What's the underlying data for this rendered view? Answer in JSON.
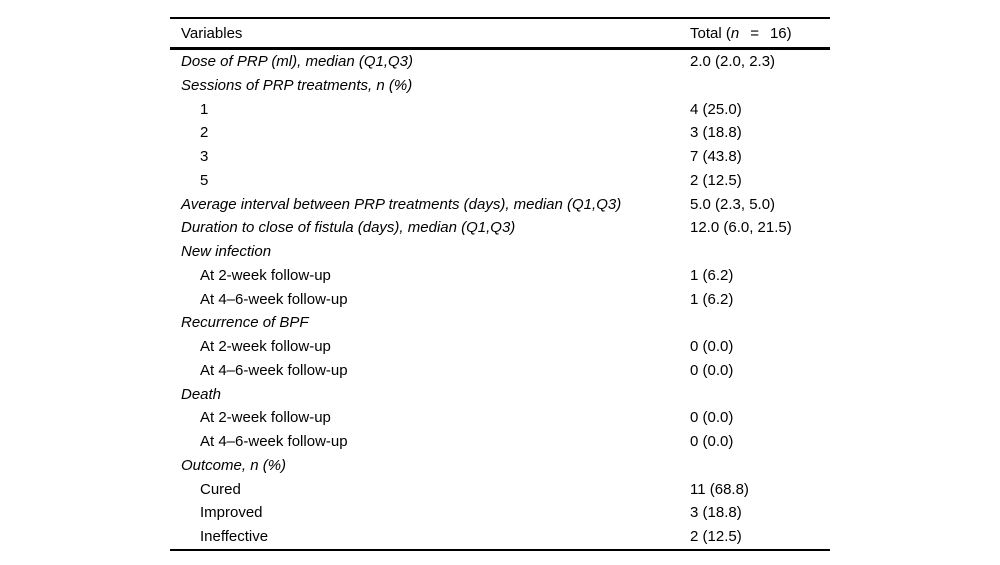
{
  "table": {
    "header": {
      "variables": "Variables",
      "total_prefix": "Total (",
      "total_n": "n",
      "total_eq": "=",
      "total_value": "16)"
    },
    "rows": [
      {
        "label": "Dose of PRP (ml), median (Q1,Q3)",
        "value": "2.0 (2.0, 2.3)",
        "italic": true,
        "indent": false
      },
      {
        "label": "Sessions of PRP treatments, n (%)",
        "value": "",
        "italic": true,
        "indent": false
      },
      {
        "label": "1",
        "value": "4 (25.0)",
        "italic": false,
        "indent": true
      },
      {
        "label": "2",
        "value": "3 (18.8)",
        "italic": false,
        "indent": true
      },
      {
        "label": "3",
        "value": "7 (43.8)",
        "italic": false,
        "indent": true
      },
      {
        "label": "5",
        "value": "2 (12.5)",
        "italic": false,
        "indent": true
      },
      {
        "label": "Average interval between PRP treatments (days), median (Q1,Q3)",
        "value": "5.0 (2.3, 5.0)",
        "italic": true,
        "indent": false
      },
      {
        "label": "Duration to close of fistula (days), median (Q1,Q3)",
        "value": "12.0 (6.0, 21.5)",
        "italic": true,
        "indent": false
      },
      {
        "label": "New infection",
        "value": "",
        "italic": true,
        "indent": false
      },
      {
        "label": "At 2-week follow-up",
        "value": "1 (6.2)",
        "italic": false,
        "indent": true
      },
      {
        "label": "At 4–6-week follow-up",
        "value": "1 (6.2)",
        "italic": false,
        "indent": true
      },
      {
        "label": "Recurrence of BPF",
        "value": "",
        "italic": true,
        "indent": false
      },
      {
        "label": "At 2-week follow-up",
        "value": "0 (0.0)",
        "italic": false,
        "indent": true
      },
      {
        "label": "At 4–6-week follow-up",
        "value": "0 (0.0)",
        "italic": false,
        "indent": true
      },
      {
        "label": "Death",
        "value": "",
        "italic": true,
        "indent": false
      },
      {
        "label": "At 2-week follow-up",
        "value": "0 (0.0)",
        "italic": false,
        "indent": true
      },
      {
        "label": "At 4–6-week follow-up",
        "value": "0 (0.0)",
        "italic": false,
        "indent": true
      },
      {
        "label": "Outcome, n (%)",
        "value": "",
        "italic": true,
        "indent": false
      },
      {
        "label": "Cured",
        "value": "11 (68.8)",
        "italic": false,
        "indent": true
      },
      {
        "label": "Improved",
        "value": "3 (18.8)",
        "italic": false,
        "indent": true
      },
      {
        "label": "Ineffective",
        "value": "2 (12.5)",
        "italic": false,
        "indent": true
      }
    ]
  }
}
